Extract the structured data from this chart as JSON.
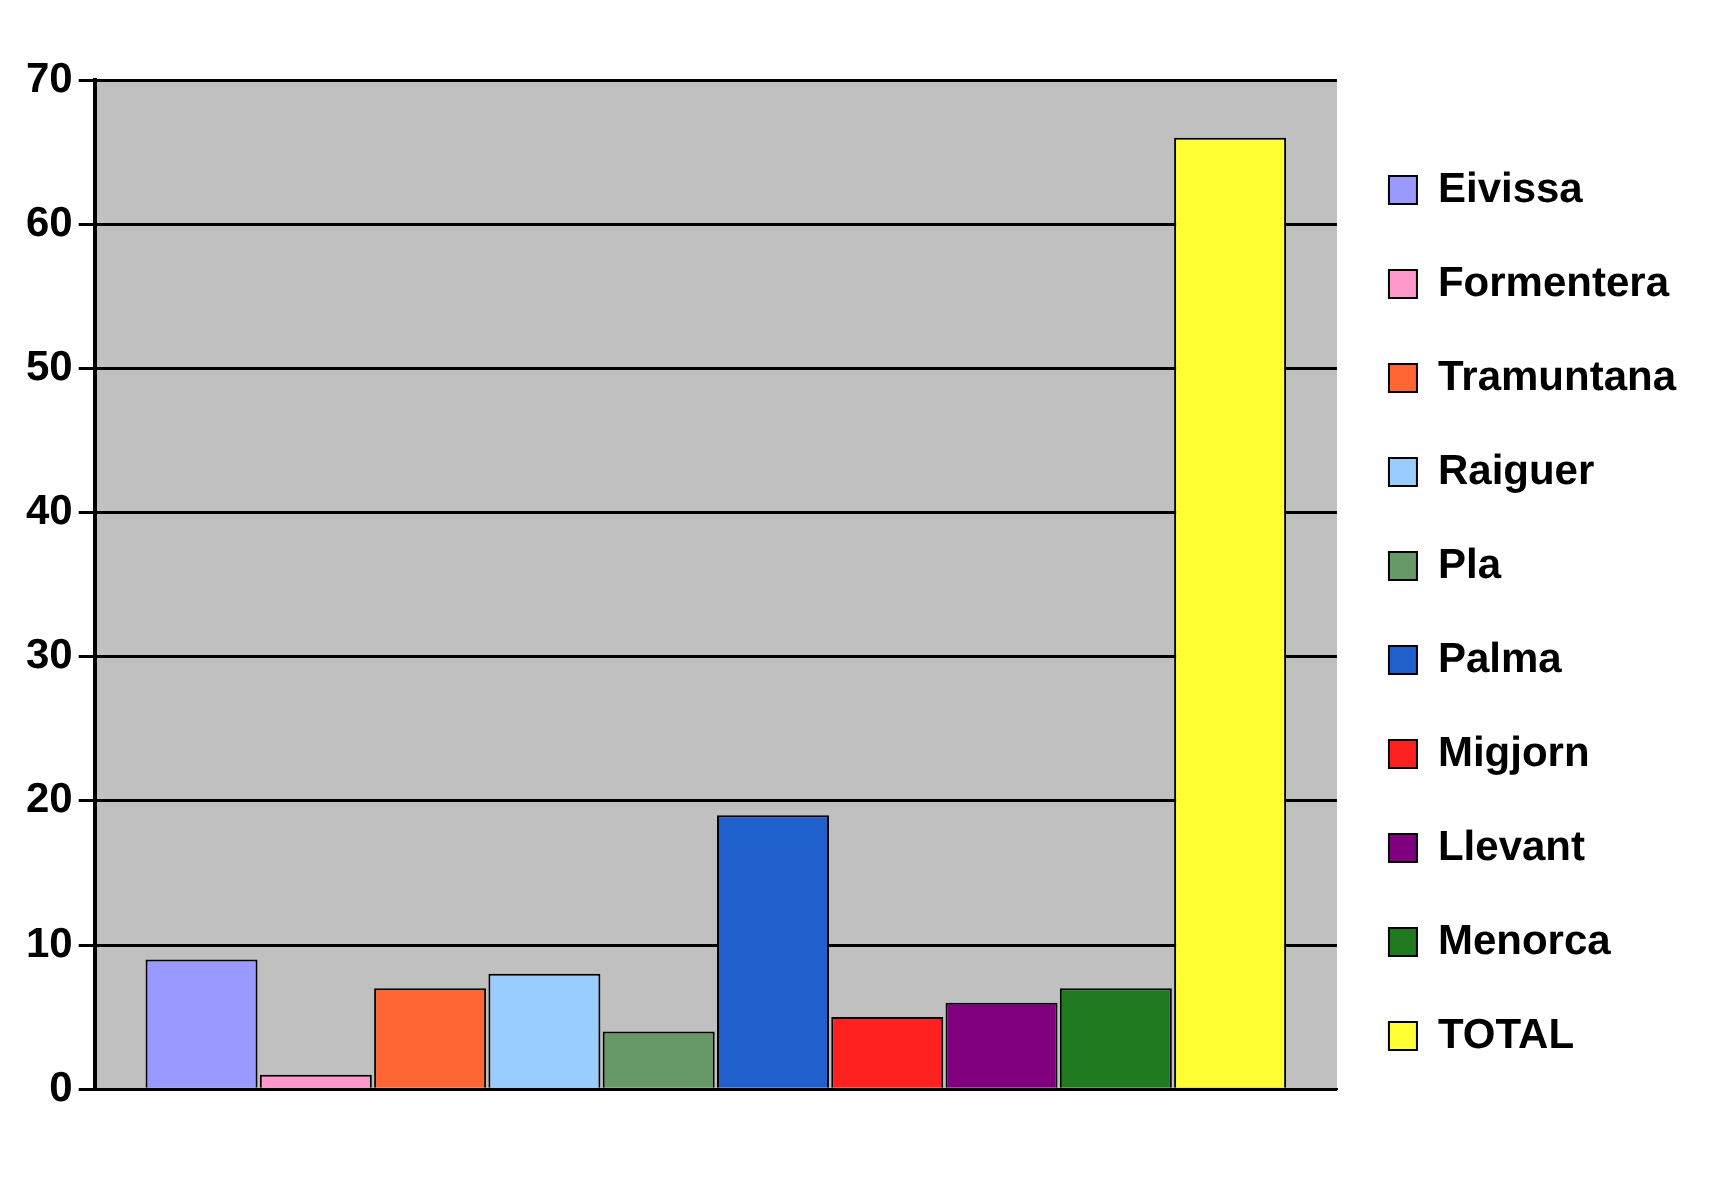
{
  "chart_data": {
    "type": "bar",
    "categories": [
      null
    ],
    "series": [
      {
        "name": "Eivissa",
        "color": "#9999ff",
        "values": [
          9
        ]
      },
      {
        "name": "Formentera",
        "color": "#ff99cc",
        "values": [
          1
        ]
      },
      {
        "name": "Tramuntana",
        "color": "#ff6633",
        "values": [
          7
        ]
      },
      {
        "name": "Raiguer",
        "color": "#99ccff",
        "values": [
          8
        ]
      },
      {
        "name": "Pla",
        "color": "#669966",
        "values": [
          4
        ]
      },
      {
        "name": "Palma",
        "color": "#2060cc",
        "values": [
          19
        ]
      },
      {
        "name": "Migjorn",
        "color": "#ff2020",
        "values": [
          5
        ]
      },
      {
        "name": "Llevant",
        "color": "#800080",
        "values": [
          6
        ]
      },
      {
        "name": "Menorca",
        "color": "#207a20",
        "values": [
          7
        ]
      },
      {
        "name": "TOTAL",
        "color": "#ffff33",
        "values": [
          66
        ]
      }
    ],
    "ylim": [
      0,
      70
    ],
    "yticks": [
      0,
      10,
      20,
      30,
      40,
      50,
      60,
      70
    ],
    "grid": "y",
    "legend": "right"
  }
}
